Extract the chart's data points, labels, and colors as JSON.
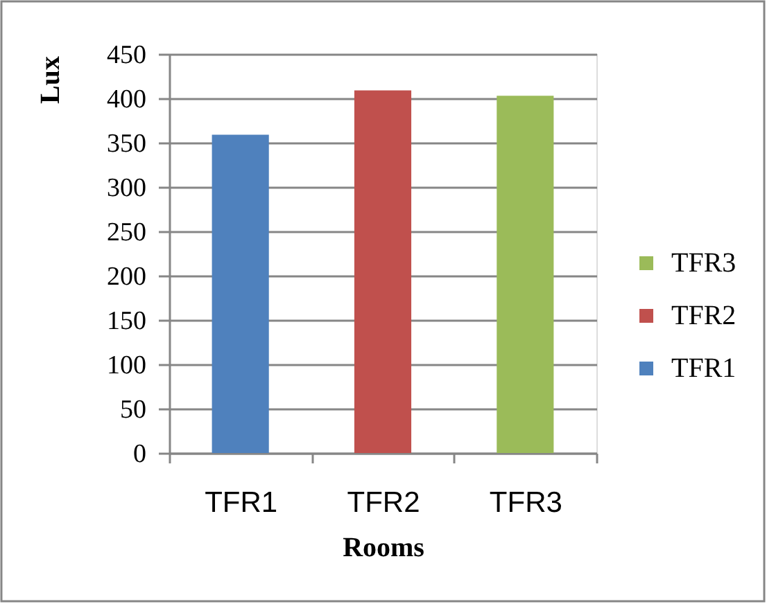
{
  "chart_data": {
    "type": "bar",
    "xlabel": "Rooms",
    "ylabel": "Lux",
    "categories": [
      "TFR1",
      "TFR2",
      "TFR3"
    ],
    "series": [
      {
        "name": "TFR1",
        "color": "#4f81bd",
        "values": [
          359,
          null,
          null
        ]
      },
      {
        "name": "TFR2",
        "color": "#c0504d",
        "values": [
          null,
          409,
          null
        ]
      },
      {
        "name": "TFR3",
        "color": "#9bbb59",
        "values": [
          null,
          null,
          403
        ]
      }
    ],
    "stacked": true,
    "ylim": [
      0,
      450
    ],
    "yticks": [
      0,
      50,
      100,
      150,
      200,
      250,
      300,
      350,
      400,
      450
    ],
    "grid": "y",
    "legend": "right"
  }
}
